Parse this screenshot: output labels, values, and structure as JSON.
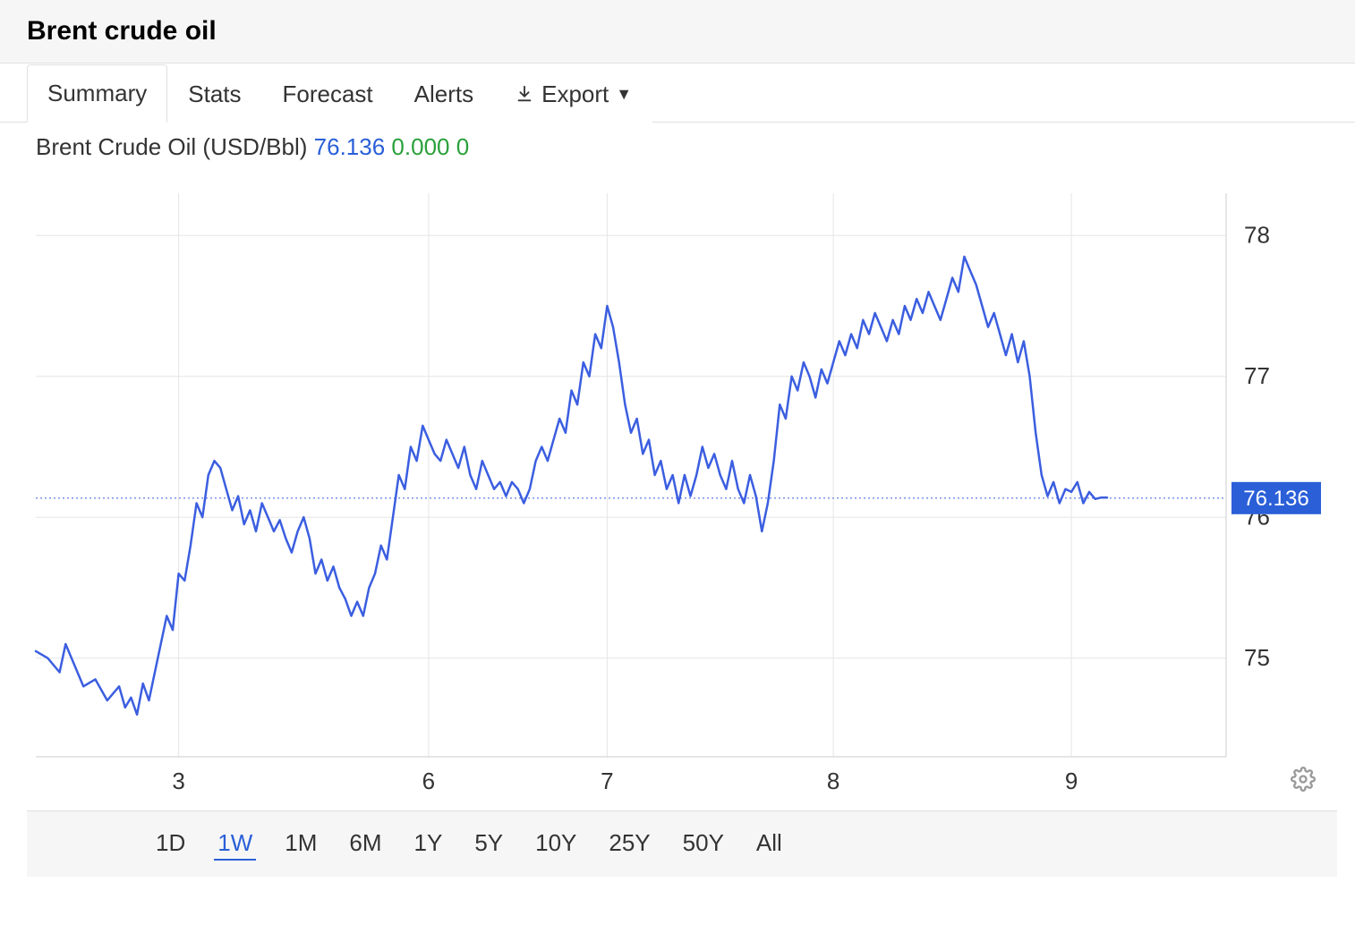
{
  "header": {
    "title": "Brent crude oil"
  },
  "tabs": {
    "items": [
      "Summary",
      "Stats",
      "Forecast",
      "Alerts"
    ],
    "active_index": 0,
    "export_label": "Export"
  },
  "legend": {
    "name": "Brent Crude Oil (USD/Bbl)",
    "price": "76.136",
    "change": "0.000 0"
  },
  "chart": {
    "type": "line",
    "line_color": "#3b5ee0",
    "line_width": 2.5,
    "background_color": "#ffffff",
    "grid_color": "#e5e5e5",
    "axis_color": "#cccccc",
    "current_value_line_color": "#3b5ee0",
    "badge_bg": "#2a5fd8",
    "badge_text_color": "#ffffff",
    "current_value": 76.136,
    "x_ticks": [
      {
        "pos": 0.12,
        "label": "3"
      },
      {
        "pos": 0.33,
        "label": "6"
      },
      {
        "pos": 0.48,
        "label": "7"
      },
      {
        "pos": 0.67,
        "label": "8"
      },
      {
        "pos": 0.87,
        "label": "9"
      }
    ],
    "y_ticks": [
      75,
      76,
      77,
      78
    ],
    "ylim": [
      74.3,
      78.3
    ],
    "label_fontsize": 26,
    "series": [
      [
        0.0,
        75.05
      ],
      [
        0.01,
        75.0
      ],
      [
        0.02,
        74.9
      ],
      [
        0.025,
        75.1
      ],
      [
        0.03,
        75.0
      ],
      [
        0.04,
        74.8
      ],
      [
        0.05,
        74.85
      ],
      [
        0.06,
        74.7
      ],
      [
        0.07,
        74.8
      ],
      [
        0.075,
        74.65
      ],
      [
        0.08,
        74.72
      ],
      [
        0.085,
        74.6
      ],
      [
        0.09,
        74.82
      ],
      [
        0.095,
        74.7
      ],
      [
        0.1,
        74.9
      ],
      [
        0.11,
        75.3
      ],
      [
        0.115,
        75.2
      ],
      [
        0.12,
        75.6
      ],
      [
        0.125,
        75.55
      ],
      [
        0.13,
        75.8
      ],
      [
        0.135,
        76.1
      ],
      [
        0.14,
        76.0
      ],
      [
        0.145,
        76.3
      ],
      [
        0.15,
        76.4
      ],
      [
        0.155,
        76.35
      ],
      [
        0.16,
        76.2
      ],
      [
        0.165,
        76.05
      ],
      [
        0.17,
        76.15
      ],
      [
        0.175,
        75.95
      ],
      [
        0.18,
        76.05
      ],
      [
        0.185,
        75.9
      ],
      [
        0.19,
        76.1
      ],
      [
        0.195,
        76.0
      ],
      [
        0.2,
        75.9
      ],
      [
        0.205,
        75.98
      ],
      [
        0.21,
        75.85
      ],
      [
        0.215,
        75.75
      ],
      [
        0.22,
        75.9
      ],
      [
        0.225,
        76.0
      ],
      [
        0.23,
        75.85
      ],
      [
        0.235,
        75.6
      ],
      [
        0.24,
        75.7
      ],
      [
        0.245,
        75.55
      ],
      [
        0.25,
        75.65
      ],
      [
        0.255,
        75.5
      ],
      [
        0.26,
        75.42
      ],
      [
        0.265,
        75.3
      ],
      [
        0.27,
        75.4
      ],
      [
        0.275,
        75.3
      ],
      [
        0.28,
        75.5
      ],
      [
        0.285,
        75.6
      ],
      [
        0.29,
        75.8
      ],
      [
        0.295,
        75.7
      ],
      [
        0.3,
        76.0
      ],
      [
        0.305,
        76.3
      ],
      [
        0.31,
        76.2
      ],
      [
        0.315,
        76.5
      ],
      [
        0.32,
        76.4
      ],
      [
        0.325,
        76.65
      ],
      [
        0.33,
        76.55
      ],
      [
        0.335,
        76.45
      ],
      [
        0.34,
        76.4
      ],
      [
        0.345,
        76.55
      ],
      [
        0.35,
        76.45
      ],
      [
        0.355,
        76.35
      ],
      [
        0.36,
        76.5
      ],
      [
        0.365,
        76.3
      ],
      [
        0.37,
        76.2
      ],
      [
        0.375,
        76.4
      ],
      [
        0.38,
        76.3
      ],
      [
        0.385,
        76.2
      ],
      [
        0.39,
        76.25
      ],
      [
        0.395,
        76.15
      ],
      [
        0.4,
        76.25
      ],
      [
        0.405,
        76.2
      ],
      [
        0.41,
        76.1
      ],
      [
        0.415,
        76.2
      ],
      [
        0.42,
        76.4
      ],
      [
        0.425,
        76.5
      ],
      [
        0.43,
        76.4
      ],
      [
        0.435,
        76.55
      ],
      [
        0.44,
        76.7
      ],
      [
        0.445,
        76.6
      ],
      [
        0.45,
        76.9
      ],
      [
        0.455,
        76.8
      ],
      [
        0.46,
        77.1
      ],
      [
        0.465,
        77.0
      ],
      [
        0.47,
        77.3
      ],
      [
        0.475,
        77.2
      ],
      [
        0.48,
        77.5
      ],
      [
        0.485,
        77.35
      ],
      [
        0.49,
        77.1
      ],
      [
        0.495,
        76.8
      ],
      [
        0.5,
        76.6
      ],
      [
        0.505,
        76.7
      ],
      [
        0.51,
        76.45
      ],
      [
        0.515,
        76.55
      ],
      [
        0.52,
        76.3
      ],
      [
        0.525,
        76.4
      ],
      [
        0.53,
        76.2
      ],
      [
        0.535,
        76.3
      ],
      [
        0.54,
        76.1
      ],
      [
        0.545,
        76.3
      ],
      [
        0.55,
        76.15
      ],
      [
        0.555,
        76.3
      ],
      [
        0.56,
        76.5
      ],
      [
        0.565,
        76.35
      ],
      [
        0.57,
        76.45
      ],
      [
        0.575,
        76.3
      ],
      [
        0.58,
        76.2
      ],
      [
        0.585,
        76.4
      ],
      [
        0.59,
        76.2
      ],
      [
        0.595,
        76.1
      ],
      [
        0.6,
        76.3
      ],
      [
        0.605,
        76.15
      ],
      [
        0.61,
        75.9
      ],
      [
        0.615,
        76.1
      ],
      [
        0.62,
        76.4
      ],
      [
        0.625,
        76.8
      ],
      [
        0.63,
        76.7
      ],
      [
        0.635,
        77.0
      ],
      [
        0.64,
        76.9
      ],
      [
        0.645,
        77.1
      ],
      [
        0.65,
        77.0
      ],
      [
        0.655,
        76.85
      ],
      [
        0.66,
        77.05
      ],
      [
        0.665,
        76.95
      ],
      [
        0.67,
        77.1
      ],
      [
        0.675,
        77.25
      ],
      [
        0.68,
        77.15
      ],
      [
        0.685,
        77.3
      ],
      [
        0.69,
        77.2
      ],
      [
        0.695,
        77.4
      ],
      [
        0.7,
        77.3
      ],
      [
        0.705,
        77.45
      ],
      [
        0.71,
        77.35
      ],
      [
        0.715,
        77.25
      ],
      [
        0.72,
        77.4
      ],
      [
        0.725,
        77.3
      ],
      [
        0.73,
        77.5
      ],
      [
        0.735,
        77.4
      ],
      [
        0.74,
        77.55
      ],
      [
        0.745,
        77.45
      ],
      [
        0.75,
        77.6
      ],
      [
        0.755,
        77.5
      ],
      [
        0.76,
        77.4
      ],
      [
        0.765,
        77.55
      ],
      [
        0.77,
        77.7
      ],
      [
        0.775,
        77.6
      ],
      [
        0.78,
        77.85
      ],
      [
        0.785,
        77.75
      ],
      [
        0.79,
        77.65
      ],
      [
        0.795,
        77.5
      ],
      [
        0.8,
        77.35
      ],
      [
        0.805,
        77.45
      ],
      [
        0.81,
        77.3
      ],
      [
        0.815,
        77.15
      ],
      [
        0.82,
        77.3
      ],
      [
        0.825,
        77.1
      ],
      [
        0.83,
        77.25
      ],
      [
        0.835,
        77.0
      ],
      [
        0.84,
        76.6
      ],
      [
        0.845,
        76.3
      ],
      [
        0.85,
        76.15
      ],
      [
        0.855,
        76.25
      ],
      [
        0.86,
        76.1
      ],
      [
        0.865,
        76.2
      ],
      [
        0.87,
        76.18
      ],
      [
        0.875,
        76.25
      ],
      [
        0.88,
        76.1
      ],
      [
        0.885,
        76.18
      ],
      [
        0.89,
        76.13
      ],
      [
        0.895,
        76.14
      ],
      [
        0.9,
        76.14
      ]
    ]
  },
  "ranges": {
    "items": [
      "1D",
      "1W",
      "1M",
      "6M",
      "1Y",
      "5Y",
      "10Y",
      "25Y",
      "50Y",
      "All"
    ],
    "active_index": 1
  }
}
